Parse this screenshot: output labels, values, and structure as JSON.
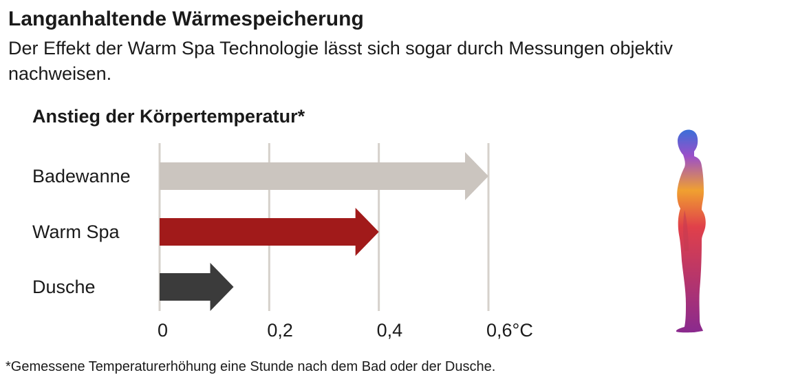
{
  "heading": "Langanhaltende Wärmespeicherung",
  "subheading": "Der Effekt der Warm Spa Technologie lässt sich sogar durch Messungen objektiv nachweisen.",
  "footnote": "*Gemessene Temperaturerhöhung eine Stunde nach dem Bad oder der Dusche.",
  "chart_data": {
    "type": "bar",
    "orientation": "horizontal",
    "title": "Anstieg der Körpertemperatur*",
    "xlabel": "",
    "ylabel": "",
    "unit": "°C",
    "categories": [
      "Badewanne",
      "Warm Spa",
      "Dusche"
    ],
    "values": [
      0.6,
      0.4,
      0.135
    ],
    "colors": [
      "#cbc5bf",
      "#a11a1a",
      "#3b3b3b"
    ],
    "xlim": [
      0,
      0.6
    ],
    "xticks": [
      0,
      0.2,
      0.4,
      0.6
    ],
    "xtick_labels": [
      "0",
      "0,2",
      "0,4",
      "0,6°C"
    ],
    "grid": true,
    "bar_style": "arrow"
  },
  "figure": {
    "icon": "human-body-thermal-icon",
    "colors": [
      "#3a6fd8",
      "#9b4fc9",
      "#f0a030",
      "#e0404a",
      "#8a2a8e"
    ]
  }
}
